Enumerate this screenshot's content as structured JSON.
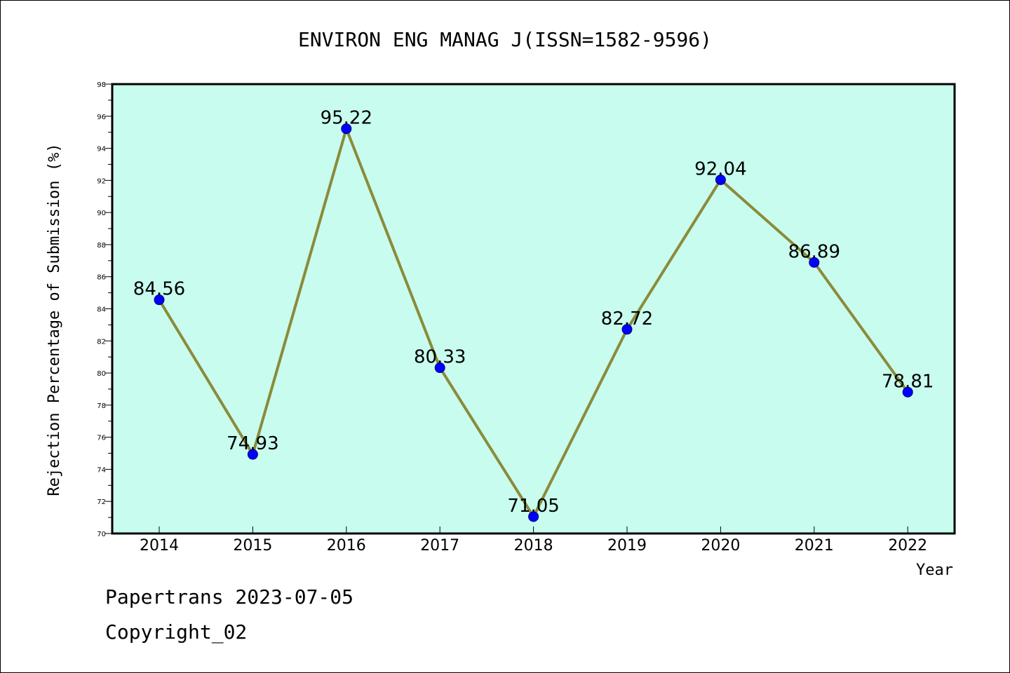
{
  "chart_data": {
    "type": "line",
    "title": "ENVIRON ENG MANAG J(ISSN=1582-9596)",
    "xlabel": "Year",
    "ylabel": "Rejection Percentage of Submission (%)",
    "categories": [
      "2014",
      "2015",
      "2016",
      "2017",
      "2018",
      "2019",
      "2020",
      "2021",
      "2022"
    ],
    "values": [
      84.56,
      74.93,
      95.22,
      80.33,
      71.05,
      82.72,
      92.04,
      86.89,
      78.81
    ],
    "data_labels": [
      "84.56",
      "74.93",
      "95.22",
      "80.33",
      "71.05",
      "82.72",
      "92.04",
      "86.89",
      "78.81"
    ],
    "ylim": [
      70,
      98
    ],
    "yticks": [
      "70",
      "72",
      "74",
      "76",
      "78",
      "80",
      "82",
      "84",
      "86",
      "88",
      "90",
      "92",
      "94",
      "96",
      "98"
    ],
    "grid": false,
    "legend": "none",
    "colors": {
      "plot_background": "#c8fcee",
      "line": "#8b8b3a",
      "marker": "#0000ff"
    }
  },
  "footer": {
    "line1": "Papertrans 2023-07-05",
    "line2": "Copyright_02"
  }
}
